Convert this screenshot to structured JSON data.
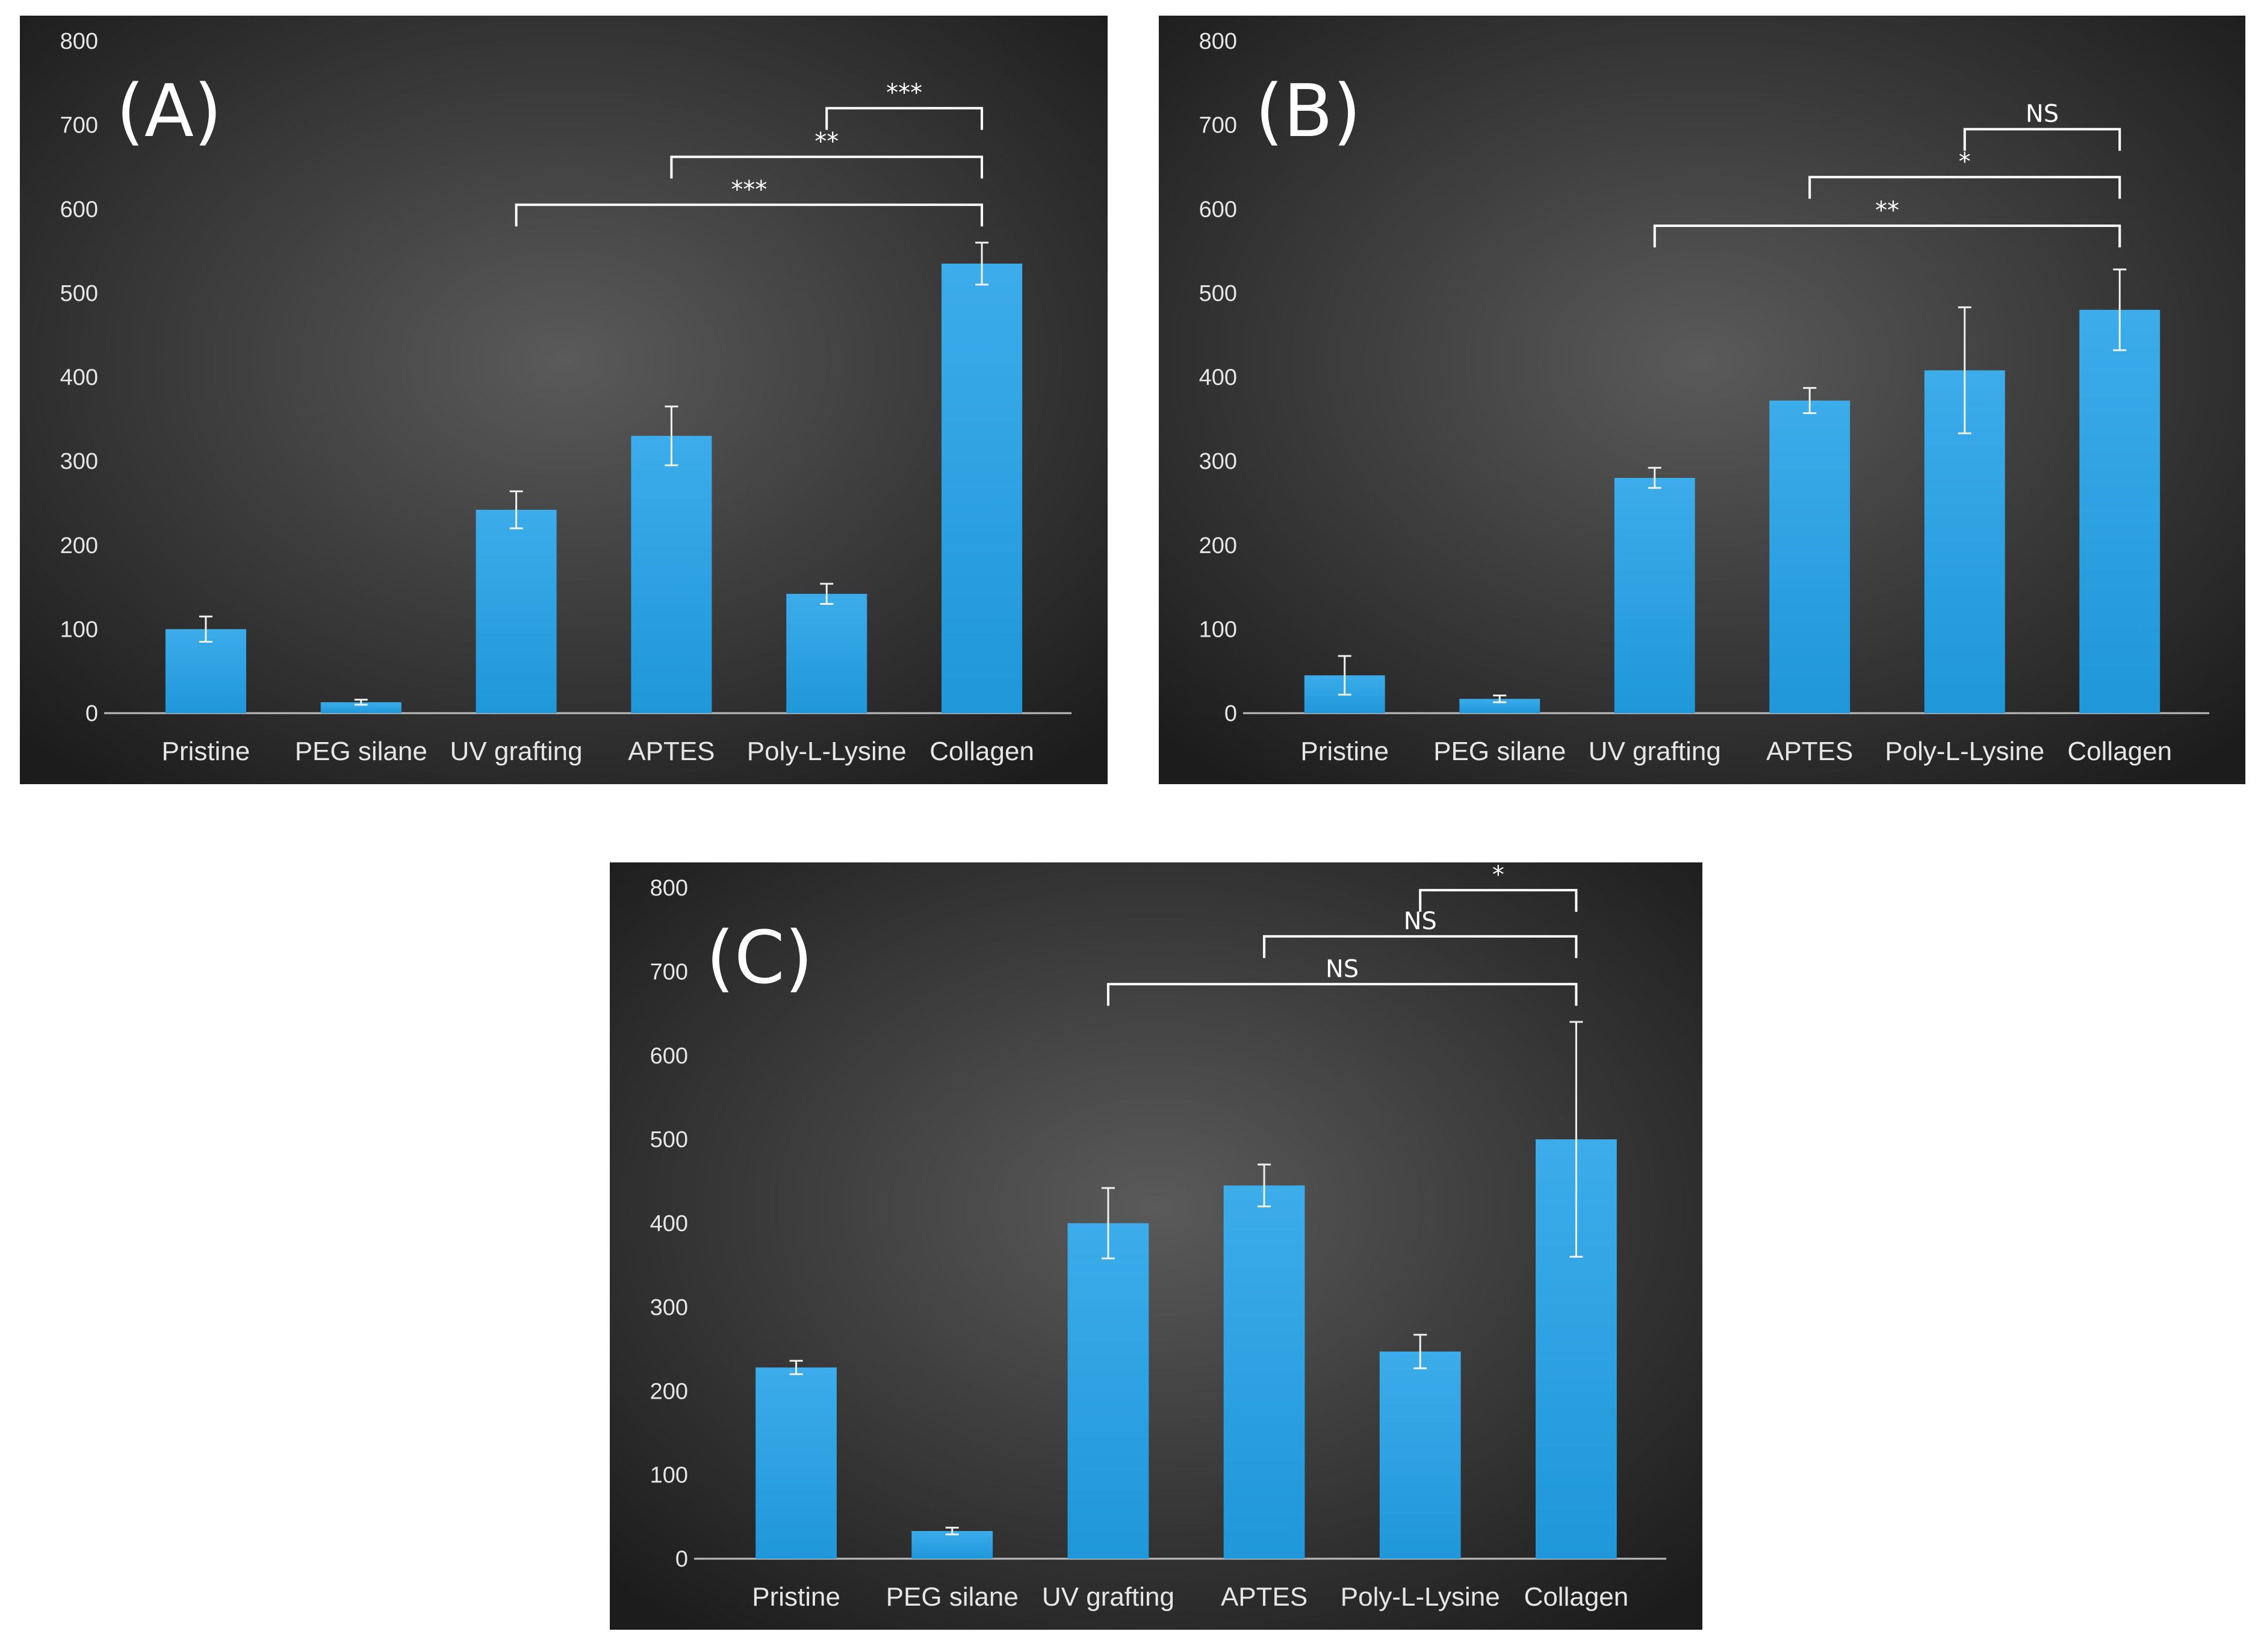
{
  "colors": {
    "bar": "#1f97d9",
    "bar_light": "#3cacea",
    "background_center": "#5a5a5a",
    "background_edge": "#1c1c1c",
    "axis": "#bfbfbf",
    "text": "#e6e6e6",
    "bracket": "#ffffff"
  },
  "chart_data": [
    {
      "type": "bar",
      "panel_label": "(A)",
      "categories": [
        "Pristine",
        "PEG silane",
        "UV grafting",
        "APTES",
        "Poly-L-Lysine",
        "Collagen"
      ],
      "values": [
        100,
        13,
        242,
        330,
        142,
        535
      ],
      "errors": [
        15,
        3,
        22,
        35,
        12,
        25
      ],
      "ylim": [
        0,
        800
      ],
      "yticks": [
        "0",
        "100",
        "200",
        "300",
        "400",
        "500",
        "600",
        "700",
        "800"
      ],
      "grid": false,
      "significance": [
        {
          "from": "UV grafting",
          "to": "Collagen",
          "label": "***",
          "level": 605
        },
        {
          "from": "APTES",
          "to": "Collagen",
          "label": "**",
          "level": 662
        },
        {
          "from": "Poly-L-Lysine",
          "to": "Collagen",
          "label": "***",
          "level": 720
        }
      ]
    },
    {
      "type": "bar",
      "panel_label": "(B)",
      "categories": [
        "Pristine",
        "PEG silane",
        "UV grafting",
        "APTES",
        "Poly-L-Lysine",
        "Collagen"
      ],
      "values": [
        45,
        17,
        280,
        372,
        408,
        480
      ],
      "errors": [
        23,
        4,
        12,
        15,
        75,
        48
      ],
      "ylim": [
        0,
        800
      ],
      "yticks": [
        "0",
        "100",
        "200",
        "300",
        "400",
        "500",
        "600",
        "700",
        "800"
      ],
      "grid": false,
      "significance": [
        {
          "from": "UV grafting",
          "to": "Collagen",
          "label": "**",
          "level": 580
        },
        {
          "from": "APTES",
          "to": "Collagen",
          "label": "*",
          "level": 638
        },
        {
          "from": "Poly-L-Lysine",
          "to": "Collagen",
          "label": "NS",
          "level": 695
        }
      ]
    },
    {
      "type": "bar",
      "panel_label": "(C)",
      "categories": [
        "Pristine",
        "PEG silane",
        "UV grafting",
        "APTES",
        "Poly-L-Lysine",
        "Collagen"
      ],
      "values": [
        228,
        33,
        400,
        445,
        247,
        500
      ],
      "errors": [
        8,
        4,
        42,
        25,
        20,
        140
      ],
      "ylim": [
        0,
        800
      ],
      "yticks": [
        "0",
        "100",
        "200",
        "300",
        "400",
        "500",
        "600",
        "700",
        "800"
      ],
      "grid": false,
      "significance": [
        {
          "from": "UV grafting",
          "to": "Collagen",
          "label": "NS",
          "level": 685
        },
        {
          "from": "APTES",
          "to": "Collagen",
          "label": "NS",
          "level": 742
        },
        {
          "from": "Poly-L-Lysine",
          "to": "Collagen",
          "label": "*",
          "level": 797
        }
      ]
    }
  ]
}
